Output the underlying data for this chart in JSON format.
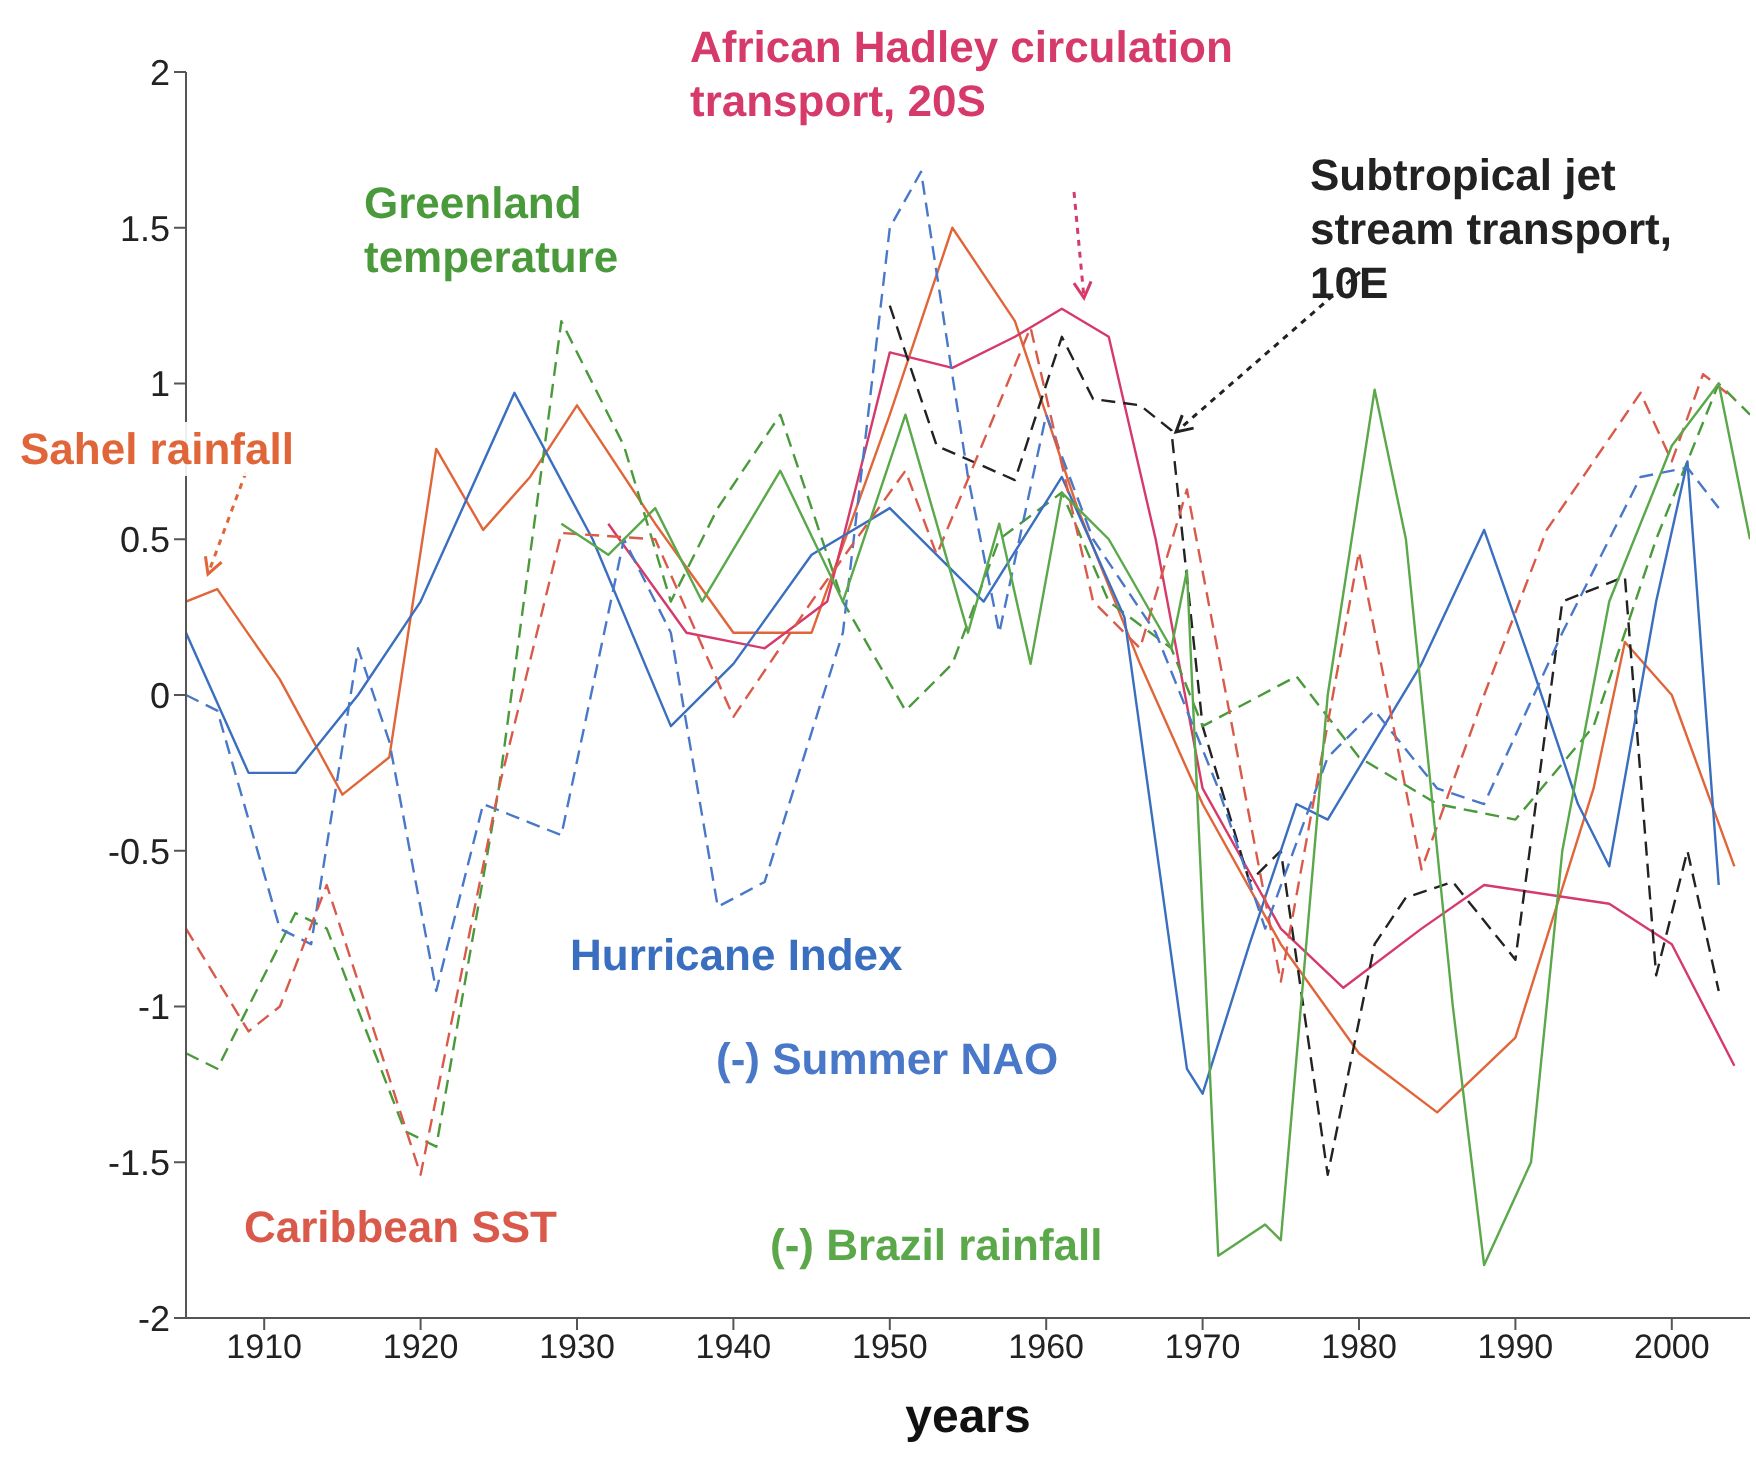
{
  "chart_data": {
    "type": "line",
    "xlabel": "years",
    "xlim": [
      1905,
      2005
    ],
    "xticks": [
      1910,
      1920,
      1930,
      1940,
      1950,
      1960,
      1970,
      1980,
      1990,
      2000
    ],
    "ylim": [
      -2,
      2
    ],
    "yticks": [
      -2,
      -1.5,
      -1,
      -0.5,
      0,
      0.5,
      1,
      1.5,
      2
    ],
    "grid": false,
    "legend": false,
    "marker": "none",
    "series": [
      {
        "name": "Sahel rainfall",
        "color": "#e0663a",
        "line_style": "solid",
        "x": [
          1905,
          1907,
          1911,
          1915,
          1918,
          1921,
          1924,
          1927,
          1930,
          1935,
          1940,
          1945,
          1950,
          1954,
          1958,
          1962,
          1966,
          1970,
          1975,
          1980,
          1985,
          1990,
          1995,
          1997,
          2000,
          2004
        ],
        "values": [
          0.3,
          0.34,
          0.05,
          -0.32,
          -0.2,
          0.79,
          0.53,
          0.7,
          0.93,
          0.55,
          0.2,
          0.2,
          0.9,
          1.5,
          1.2,
          0.6,
          0.1,
          -0.35,
          -0.8,
          -1.15,
          -1.34,
          -1.1,
          -0.3,
          0.17,
          0.0,
          -0.55
        ]
      },
      {
        "name": "African Hadley circulation transport, 20S",
        "color": "#d63a6a",
        "line_style": "solid",
        "x": [
          1932,
          1937,
          1942,
          1946,
          1950,
          1954,
          1958,
          1961,
          1964,
          1967,
          1970,
          1975,
          1979,
          1984,
          1988,
          1996,
          2000,
          2004
        ],
        "values": [
          0.55,
          0.2,
          0.15,
          0.3,
          1.1,
          1.05,
          1.15,
          1.24,
          1.15,
          0.5,
          -0.3,
          -0.75,
          -0.94,
          -0.75,
          -0.61,
          -0.67,
          -0.8,
          -1.19
        ]
      },
      {
        "name": "Subtropical jet stream transport, 10E",
        "color": "#222222",
        "line_style": "dashed",
        "x": [
          1950,
          1953,
          1958,
          1961,
          1963,
          1966,
          1968,
          1970,
          1973,
          1975,
          1978,
          1981,
          1983,
          1986,
          1990,
          1993,
          1997,
          1999,
          2001,
          2003
        ],
        "values": [
          1.25,
          0.8,
          0.69,
          1.15,
          0.95,
          0.93,
          0.85,
          -0.1,
          -0.6,
          -0.5,
          -1.54,
          -0.8,
          -0.65,
          -0.6,
          -0.85,
          0.3,
          0.38,
          -0.9,
          -0.5,
          -0.95
        ]
      },
      {
        "name": "Greenland temperature",
        "color": "#4a9a3c",
        "line_style": "dashed",
        "x": [
          1905,
          1907,
          1912,
          1914,
          1919,
          1921,
          1925,
          1929,
          1933,
          1936,
          1939,
          1943,
          1947,
          1951,
          1954,
          1957,
          1961,
          1964,
          1968,
          1970,
          1976,
          1980,
          1985,
          1990,
          1995,
          1999,
          2003,
          2005
        ],
        "values": [
          -1.15,
          -1.2,
          -0.7,
          -0.75,
          -1.4,
          -1.45,
          -0.3,
          1.2,
          0.8,
          0.3,
          0.6,
          0.9,
          0.3,
          -0.05,
          0.1,
          0.5,
          0.65,
          0.3,
          0.15,
          -0.1,
          0.06,
          -0.2,
          -0.35,
          -0.4,
          -0.1,
          0.5,
          1.0,
          0.9
        ]
      },
      {
        "name": "Hurricane Index",
        "color": "#3a6fc0",
        "line_style": "solid",
        "x": [
          1905,
          1909,
          1912,
          1916,
          1920,
          1926,
          1931,
          1936,
          1940,
          1945,
          1950,
          1953,
          1956,
          1961,
          1965,
          1969,
          1970,
          1973,
          1976,
          1978,
          1984,
          1988,
          1991,
          1994,
          1996,
          1999,
          2001,
          2003
        ],
        "values": [
          0.2,
          -0.25,
          -0.25,
          0.0,
          0.3,
          0.97,
          0.5,
          -0.1,
          0.1,
          0.45,
          0.6,
          0.45,
          0.3,
          0.7,
          0.25,
          -1.2,
          -1.28,
          -0.8,
          -0.35,
          -0.4,
          0.1,
          0.53,
          0.1,
          -0.35,
          -0.55,
          0.3,
          0.75,
          -0.61
        ]
      },
      {
        "name": "(-) Summer NAO",
        "color": "#4a78c8",
        "line_style": "dashed",
        "x": [
          1905,
          1907,
          1911,
          1913,
          1916,
          1918,
          1921,
          1924,
          1929,
          1933,
          1936,
          1939,
          1942,
          1947,
          1950,
          1952,
          1955,
          1957,
          1960,
          1963,
          1967,
          1971,
          1974,
          1978,
          1981,
          1985,
          1988,
          1993,
          1998,
          2001,
          2003
        ],
        "values": [
          0.0,
          -0.05,
          -0.75,
          -0.8,
          0.15,
          -0.15,
          -0.95,
          -0.35,
          -0.45,
          0.5,
          0.2,
          -0.68,
          -0.6,
          0.2,
          1.5,
          1.68,
          0.7,
          0.2,
          0.9,
          0.5,
          0.2,
          -0.3,
          -0.75,
          -0.2,
          -0.05,
          -0.3,
          -0.35,
          0.2,
          0.7,
          0.73,
          0.6
        ]
      },
      {
        "name": "Caribbean SST",
        "color": "#d95a4a",
        "line_style": "dashed",
        "x": [
          1905,
          1909,
          1911,
          1914,
          1920,
          1925,
          1929,
          1935,
          1940,
          1945,
          1951,
          1953,
          1959,
          1963,
          1966,
          1969,
          1975,
          1980,
          1984,
          1988,
          1992,
          1998,
          2000,
          2002,
          2004
        ],
        "values": [
          -0.75,
          -1.08,
          -1.0,
          -0.61,
          -1.54,
          -0.3,
          0.52,
          0.5,
          -0.07,
          0.3,
          0.72,
          0.45,
          1.18,
          0.3,
          0.15,
          0.66,
          -0.92,
          0.46,
          -0.56,
          0.0,
          0.53,
          0.97,
          0.75,
          1.03,
          0.95
        ]
      },
      {
        "name": "(-) Brazil rainfall",
        "color": "#5aa84a",
        "line_style": "solid",
        "x": [
          1929,
          1932,
          1935,
          1938,
          1943,
          1947,
          1951,
          1955,
          1957,
          1959,
          1961,
          1964,
          1968,
          1969,
          1971,
          1974,
          1975,
          1978,
          1981,
          1983,
          1986,
          1988,
          1991,
          1993,
          1996,
          2000,
          2003,
          2005
        ],
        "values": [
          0.55,
          0.45,
          0.6,
          0.3,
          0.72,
          0.3,
          0.9,
          0.2,
          0.55,
          0.1,
          0.65,
          0.5,
          0.15,
          0.4,
          -1.8,
          -1.7,
          -1.75,
          0.0,
          0.98,
          0.5,
          -1.0,
          -1.83,
          -1.5,
          -0.5,
          0.3,
          0.8,
          1.0,
          0.5
        ]
      }
    ]
  }
}
